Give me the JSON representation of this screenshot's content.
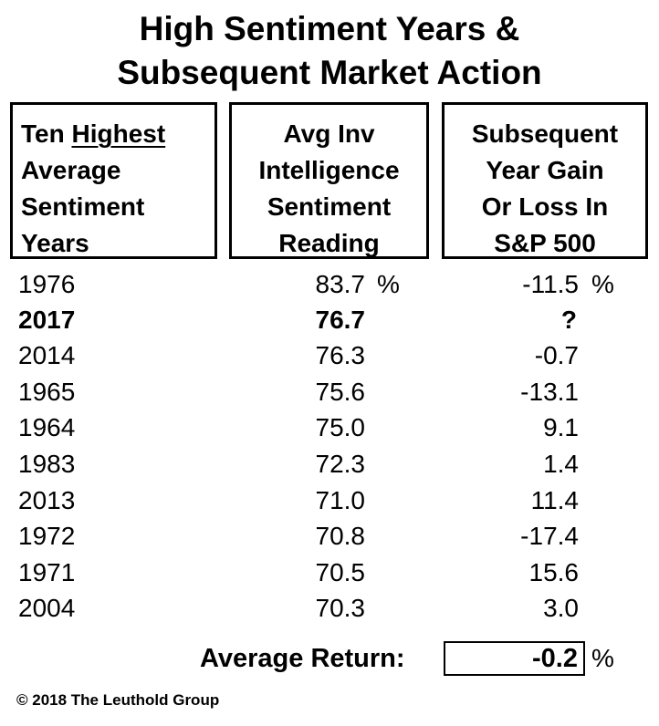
{
  "title": {
    "line1": "High Sentiment Years &",
    "line2": "Subsequent Market Action"
  },
  "headers": {
    "col1": {
      "line1_a": "Ten ",
      "line1_b": "Highest",
      "line2": "Average",
      "line3": "Sentiment",
      "line4": "Years"
    },
    "col2": {
      "line1": "Avg Inv",
      "line2": "Intelligence",
      "line3": "Sentiment",
      "line4": "Reading"
    },
    "col3": {
      "line1": "Subsequent",
      "line2": "Year Gain",
      "line3": "Or Loss In",
      "line4": "S&P 500"
    }
  },
  "rows": [
    {
      "year": "1976",
      "sentiment": "83.7",
      "gain": "-11.5"
    },
    {
      "year": "2017",
      "sentiment": "76.7",
      "gain": "?"
    },
    {
      "year": "2014",
      "sentiment": "76.3",
      "gain": "-0.7"
    },
    {
      "year": "1965",
      "sentiment": "75.6",
      "gain": "-13.1"
    },
    {
      "year": "1964",
      "sentiment": "75.0",
      "gain": "9.1"
    },
    {
      "year": "1983",
      "sentiment": "72.3",
      "gain": "1.4"
    },
    {
      "year": "2013",
      "sentiment": "71.0",
      "gain": "11.4"
    },
    {
      "year": "1972",
      "sentiment": "70.8",
      "gain": "-17.4"
    },
    {
      "year": "1971",
      "sentiment": "70.5",
      "gain": "15.6"
    },
    {
      "year": "2004",
      "sentiment": "70.3",
      "gain": "3.0"
    }
  ],
  "percent_sign": "%",
  "average": {
    "label": "Average Return:",
    "value": "-0.2",
    "unit": "%"
  },
  "copyright": "© 2018 The Leuthold Group"
}
